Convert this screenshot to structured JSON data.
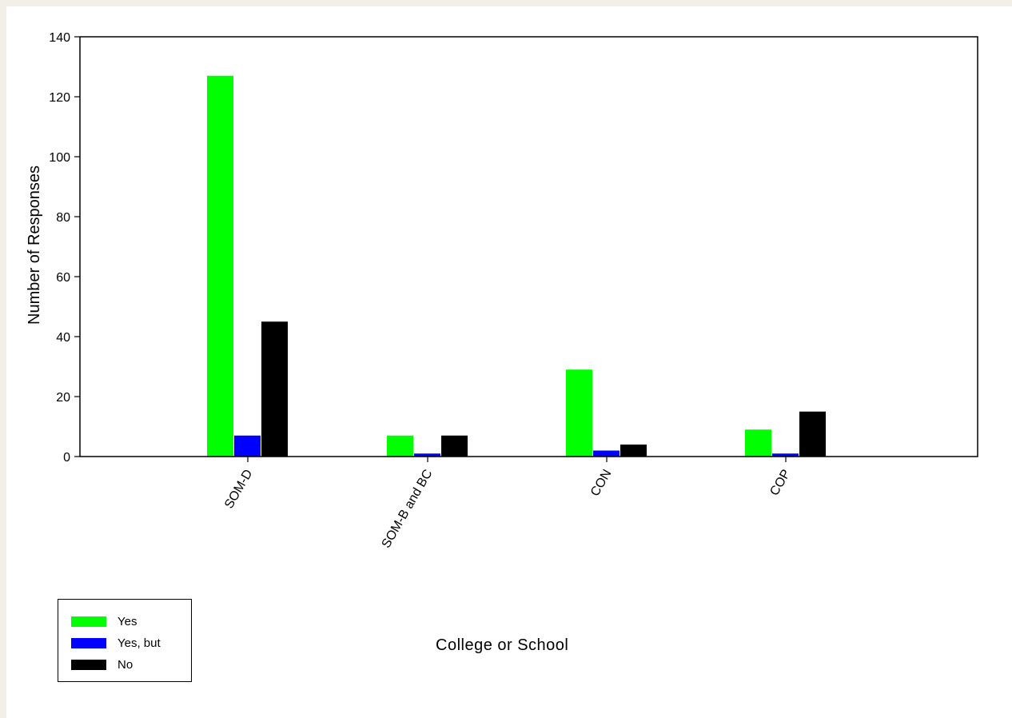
{
  "chart_data": {
    "type": "bar",
    "title": "",
    "xlabel": "College or School",
    "ylabel": "Number of Responses",
    "ylim": [
      0,
      140
    ],
    "yticks": [
      0,
      20,
      40,
      60,
      80,
      100,
      120,
      140
    ],
    "categories": [
      "SOM-D",
      "SOM-B and BC",
      "CON",
      "COP"
    ],
    "series": [
      {
        "name": "Yes",
        "color": "#00ff00",
        "values": [
          127,
          7,
          29,
          9
        ]
      },
      {
        "name": "Yes, but",
        "color": "#0000ff",
        "values": [
          7,
          1,
          2,
          1
        ]
      },
      {
        "name": "No",
        "color": "#000000",
        "values": [
          45,
          7,
          4,
          15
        ]
      }
    ],
    "grid": false,
    "legend_position": "bottom-left"
  }
}
